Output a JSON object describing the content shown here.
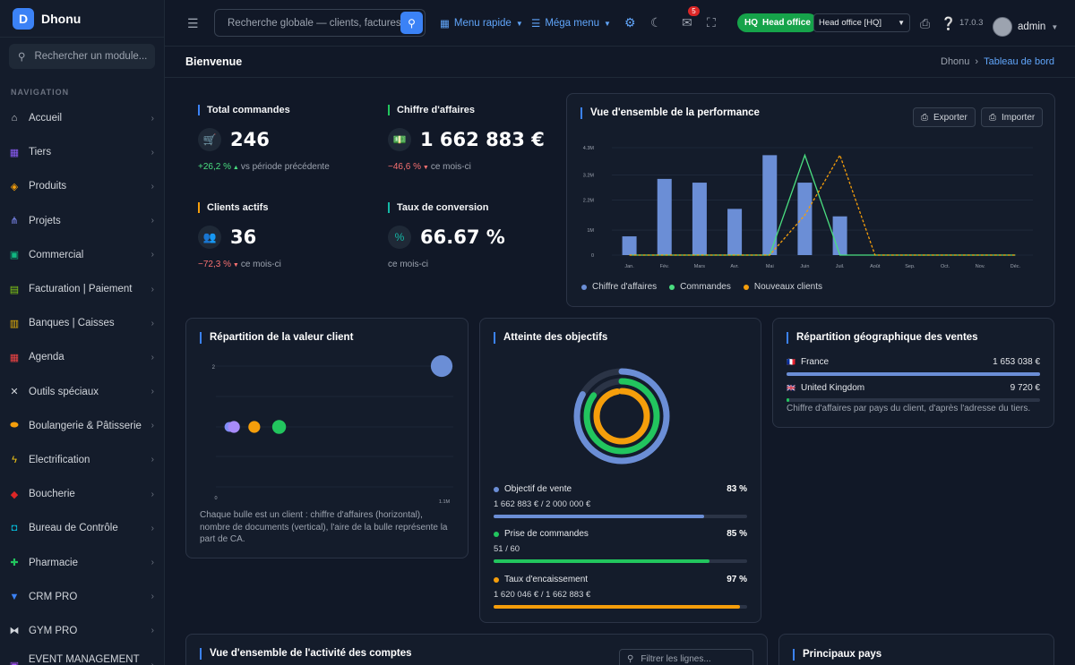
{
  "app": {
    "name": "Dhonu"
  },
  "sidebar": {
    "search_placeholder": "Rechercher un module...",
    "nav_title": "NAVIGATION",
    "items": [
      {
        "label": "Accueil",
        "icon": "home-icon",
        "color": "#d1d5db"
      },
      {
        "label": "Tiers",
        "icon": "building-icon",
        "color": "#8b5cf6"
      },
      {
        "label": "Produits",
        "icon": "box-icon",
        "color": "#f59e0b"
      },
      {
        "label": "Projets",
        "icon": "project-icon",
        "color": "#818cf8"
      },
      {
        "label": "Commercial",
        "icon": "briefcase-icon",
        "color": "#10b981"
      },
      {
        "label": "Facturation | Paiement",
        "icon": "invoice-icon",
        "color": "#84cc16"
      },
      {
        "label": "Banques | Caisses",
        "icon": "bank-icon",
        "color": "#eab308"
      },
      {
        "label": "Agenda",
        "icon": "calendar-icon",
        "color": "#ef4444"
      },
      {
        "label": "Outils spéciaux",
        "icon": "tools-icon",
        "color": "#d1d5db"
      },
      {
        "label": "Boulangerie & Pâtisserie",
        "icon": "bread-icon",
        "color": "#f59e0b"
      },
      {
        "label": "Electrification",
        "icon": "bolt-icon",
        "color": "#facc15"
      },
      {
        "label": "Boucherie",
        "icon": "meat-icon",
        "color": "#dc2626"
      },
      {
        "label": "Bureau de Contrôle",
        "icon": "inspection-icon",
        "color": "#06b6d4"
      },
      {
        "label": "Pharmacie",
        "icon": "cross-icon",
        "color": "#22c55e"
      },
      {
        "label": "CRM PRO",
        "icon": "funnel-icon",
        "color": "#3b82f6"
      },
      {
        "label": "GYM PRO",
        "icon": "dumbbell-icon",
        "color": "#d1d5db"
      },
      {
        "label": "EVENT MANAGEMENT P...",
        "icon": "event-icon",
        "color": "#a855f7"
      }
    ]
  },
  "topbar": {
    "search_placeholder": "Recherche globale — clients, factures, p",
    "quick_menu": "Menu rapide",
    "mega_menu": "Méga menu",
    "notif_count": "5",
    "hq_badge": "HQ",
    "hq_label": "Head office",
    "entity_select": "Head office [HQ]",
    "version": "17.0.3",
    "user": "admin"
  },
  "page": {
    "title": "Bienvenue",
    "crumbs": [
      "Dhonu",
      "Tableau de bord"
    ]
  },
  "kpis": [
    {
      "title": "Total commandes",
      "value": "246",
      "change": "+26,2 %",
      "dir": "up",
      "note": "vs période précédente",
      "color": "#3b82f6",
      "icon": "cart-icon",
      "glyph": "🛒"
    },
    {
      "title": "Chiffre d'affaires",
      "value": "1 662 883 €",
      "change": "−46,6 %",
      "dir": "down",
      "note": "ce mois-ci",
      "color": "#22c55e",
      "icon": "money-icon",
      "glyph": "💵"
    },
    {
      "title": "Clients actifs",
      "value": "36",
      "change": "−72,3 %",
      "dir": "down",
      "note": "ce mois-ci",
      "color": "#f59e0b",
      "icon": "users-icon",
      "glyph": "👥"
    },
    {
      "title": "Taux de conversion",
      "value": "66.67 %",
      "change": "",
      "dir": "",
      "note": "ce mois-ci",
      "color": "#14b8a6",
      "icon": "percent-icon",
      "glyph": "%"
    }
  ],
  "perf": {
    "title": "Vue d'ensemble de la performance",
    "export": "Exporter",
    "import": "Importer"
  },
  "chart_data": [
    {
      "type": "bar",
      "title": "Vue d'ensemble de la performance",
      "categories": [
        "Jan.",
        "Fév.",
        "Mars",
        "Avr.",
        "Mai",
        "Juin",
        "Juil.",
        "Août",
        "Sep.",
        "Oct.",
        "Nov.",
        "Déc."
      ],
      "yticks": [
        "0",
        "1M",
        "2.2M",
        "3.2M",
        "4.3M"
      ],
      "ylim": [
        0,
        4.3
      ],
      "series": [
        {
          "name": "Chiffre d'affaires",
          "type": "bar",
          "color": "#6b8ed6",
          "values": [
            0.75,
            3.05,
            2.9,
            1.85,
            4.0,
            2.9,
            1.55,
            0,
            0,
            0,
            0,
            0
          ]
        },
        {
          "name": "Commandes",
          "type": "line",
          "color": "#4ade80",
          "values": [
            0,
            0,
            0,
            0,
            0,
            4.0,
            0,
            0,
            0,
            0,
            0,
            0
          ]
        },
        {
          "name": "Nouveaux clients",
          "type": "line",
          "dashed": true,
          "color": "#f59e0b",
          "values": [
            0,
            0,
            0,
            0,
            0,
            1.6,
            4.0,
            0,
            0,
            0,
            0,
            0
          ]
        }
      ]
    },
    {
      "type": "scatter",
      "title": "Répartition de la valeur client",
      "xticks": [
        "0",
        "1.1M"
      ],
      "yticks": [
        "2"
      ],
      "points": [
        {
          "x": 0.06,
          "y": 1,
          "r": 0.25,
          "color": "#818cf8"
        },
        {
          "x": 0.08,
          "y": 1,
          "r": 0.3,
          "color": "#a78bfa"
        },
        {
          "x": 0.17,
          "y": 1,
          "r": 0.3,
          "color": "#f59e0b"
        },
        {
          "x": 0.28,
          "y": 1,
          "r": 0.35,
          "color": "#22c55e"
        },
        {
          "x": 1.0,
          "y": 2,
          "r": 0.55,
          "color": "#6b8ed6"
        }
      ]
    }
  ],
  "clients": {
    "title": "Répartition de la valeur client",
    "desc": "Chaque bulle est un client : chiffre d'affaires (horizontal), nombre de documents (vertical), l'aire de la bulle représente la part de CA."
  },
  "objectives": {
    "title": "Atteinte des objectifs",
    "items": [
      {
        "label": "Objectif de vente",
        "pct": "83 %",
        "value": 0.83,
        "detail": "1 662 883 € / 2 000 000 €",
        "color": "#6b8ed6"
      },
      {
        "label": "Prise de commandes",
        "pct": "85 %",
        "value": 0.85,
        "detail": "51 / 60",
        "color": "#22c55e"
      },
      {
        "label": "Taux d'encaissement",
        "pct": "97 %",
        "value": 0.97,
        "detail": "1 620 046 € / 1 662 883 €",
        "color": "#f59e0b"
      }
    ]
  },
  "geo": {
    "title": "Répartition géographique des ventes",
    "rows": [
      {
        "flag": "🇫🇷",
        "country": "France",
        "amount": "1 653 038 €",
        "value": 1.0
      },
      {
        "flag": "🇬🇧",
        "country": "United Kingdom",
        "amount": "9 720 €",
        "value": 0.006
      }
    ],
    "note": "Chiffre d'affaires par pays du client, d'après l'adresse du tiers."
  },
  "activity": {
    "title": "Vue d'ensemble de l'activité des comptes",
    "filter_placeholder": "Filtrer les lignes..."
  },
  "top_countries": {
    "title": "Principaux pays"
  }
}
